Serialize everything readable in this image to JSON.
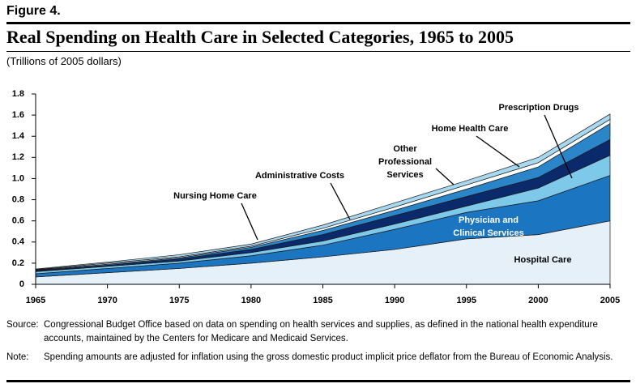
{
  "figure_label": "Figure 4.",
  "chart_data": {
    "type": "stacked_area",
    "title": "Real Spending on Health Care in Selected Categories, 1965 to 2005",
    "subtitle": "(Trillions of 2005 dollars)",
    "x": [
      1965,
      1970,
      1975,
      1980,
      1985,
      1990,
      1995,
      2000,
      2005
    ],
    "xlim": [
      1965,
      2005
    ],
    "xticks": [
      1965,
      1970,
      1975,
      1980,
      1985,
      1990,
      1995,
      2000,
      2005
    ],
    "ylim": [
      0,
      1.8
    ],
    "yticks": [
      0,
      {
        "value": 0.2,
        "label": "0.2"
      },
      {
        "value": 0.4,
        "label": "0.4"
      },
      {
        "value": 0.6,
        "label": "0.6"
      },
      {
        "value": 0.8,
        "label": "0.8"
      },
      {
        "value": 1.0,
        "label": "1.0"
      },
      {
        "value": 1.2,
        "label": "1.2"
      },
      {
        "value": 1.4,
        "label": "1.4"
      },
      {
        "value": 1.6,
        "label": "1.6"
      },
      {
        "value": 1.8,
        "label": "1.8"
      }
    ],
    "series": [
      {
        "name": "Hospital Care",
        "color": "#e6f0f8",
        "values": [
          0.07,
          0.11,
          0.15,
          0.2,
          0.26,
          0.33,
          0.43,
          0.47,
          0.6
        ]
      },
      {
        "name": "Physician and Clinical Services",
        "color": "#1b75c0",
        "values": [
          0.03,
          0.04,
          0.05,
          0.07,
          0.11,
          0.19,
          0.25,
          0.32,
          0.43
        ]
      },
      {
        "name": "Prescription Drugs",
        "color": "#7ec8ea",
        "values": [
          0.02,
          0.02,
          0.02,
          0.03,
          0.04,
          0.05,
          0.06,
          0.12,
          0.19
        ]
      },
      {
        "name": "Other Professional Services",
        "color": "#0b2a6b",
        "values": [
          0.01,
          0.01,
          0.02,
          0.03,
          0.06,
          0.08,
          0.09,
          0.1,
          0.15
        ]
      },
      {
        "name": "Home Health Care",
        "color": "#2a86c8",
        "values": [
          0.005,
          0.01,
          0.01,
          0.02,
          0.04,
          0.05,
          0.07,
          0.1,
          0.15
        ]
      },
      {
        "name": "Administrative Costs",
        "color": "#ffffff",
        "values": [
          0.005,
          0.01,
          0.01,
          0.01,
          0.02,
          0.03,
          0.04,
          0.04,
          0.04
        ]
      },
      {
        "name": "Nursing Home Care",
        "color": "#a8d8ef",
        "values": [
          0.005,
          0.01,
          0.02,
          0.02,
          0.03,
          0.04,
          0.04,
          0.05,
          0.05
        ]
      }
    ],
    "notes": [
      {
        "label": "Source:",
        "text": "Congressional Budget Office based on data on spending on health services and supplies, as defined in the national health expenditure accounts, maintained by the Centers for Medicare and Medicaid Services."
      },
      {
        "label": "Note:",
        "text": "Spending amounts are adjusted for inflation using the gross domestic product implicit price deflator from the Bureau of Economic Analysis."
      }
    ]
  }
}
